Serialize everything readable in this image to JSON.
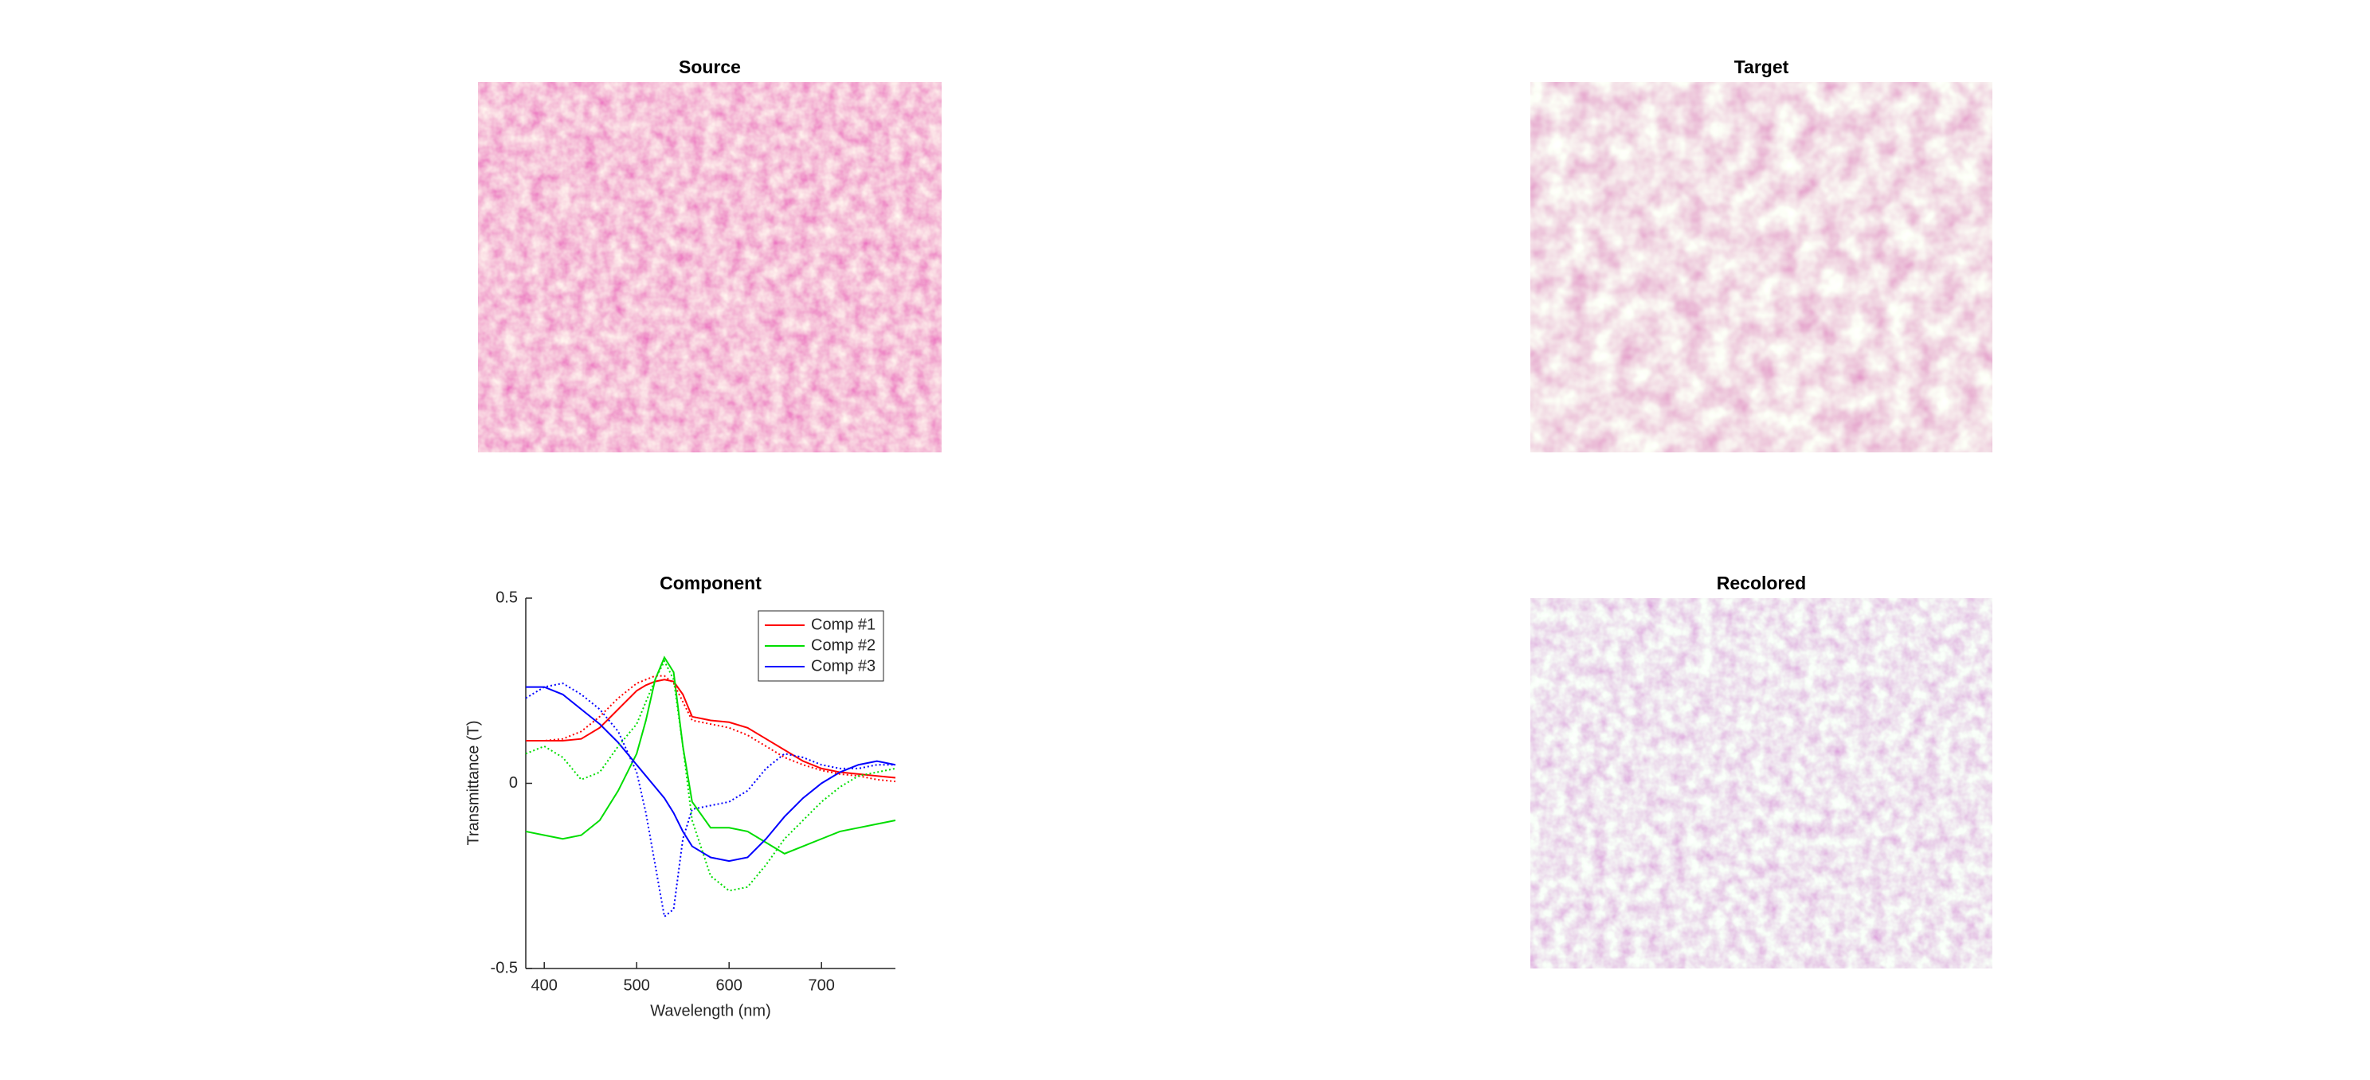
{
  "panels": [
    {
      "title": "Source"
    },
    {
      "title": "Target"
    },
    {
      "title": "Recolored"
    }
  ],
  "chart_data": {
    "type": "line",
    "title": "Component",
    "xlabel": "Wavelength (nm)",
    "ylabel": "Transmittance (T)",
    "x": [
      380,
      400,
      420,
      440,
      460,
      480,
      500,
      510,
      520,
      530,
      540,
      550,
      560,
      580,
      600,
      620,
      640,
      660,
      680,
      700,
      720,
      740,
      760,
      780
    ],
    "xlim": [
      380,
      780
    ],
    "xticks": [
      400,
      500,
      600,
      700
    ],
    "ylim": [
      -0.5,
      0.5
    ],
    "yticks": [
      -0.5,
      0,
      0.5
    ],
    "legend": "northeast",
    "series": [
      {
        "name": "Comp #1",
        "color": "#ff0000",
        "style": "solid",
        "values": [
          0.115,
          0.115,
          0.115,
          0.12,
          0.15,
          0.2,
          0.25,
          0.265,
          0.275,
          0.28,
          0.275,
          0.24,
          0.18,
          0.17,
          0.165,
          0.15,
          0.12,
          0.09,
          0.06,
          0.04,
          0.03,
          0.025,
          0.02,
          0.015
        ]
      },
      {
        "name": "Comp #2",
        "color": "#00dd00",
        "style": "solid",
        "values": [
          -0.13,
          -0.14,
          -0.15,
          -0.14,
          -0.1,
          -0.02,
          0.08,
          0.17,
          0.28,
          0.34,
          0.3,
          0.1,
          -0.05,
          -0.12,
          -0.12,
          -0.13,
          -0.16,
          -0.19,
          -0.17,
          -0.15,
          -0.13,
          -0.12,
          -0.11,
          -0.1
        ]
      },
      {
        "name": "Comp #3",
        "color": "#0000ff",
        "style": "solid",
        "values": [
          0.26,
          0.26,
          0.24,
          0.2,
          0.16,
          0.11,
          0.05,
          0.02,
          -0.01,
          -0.04,
          -0.08,
          -0.13,
          -0.17,
          -0.2,
          -0.21,
          -0.2,
          -0.15,
          -0.09,
          -0.04,
          0.0,
          0.03,
          0.05,
          0.06,
          0.05
        ]
      },
      {
        "color": "#ff0000",
        "style": "dotted",
        "values": [
          0.115,
          0.115,
          0.12,
          0.14,
          0.18,
          0.23,
          0.27,
          0.28,
          0.29,
          0.29,
          0.27,
          0.22,
          0.17,
          0.16,
          0.15,
          0.13,
          0.1,
          0.07,
          0.05,
          0.035,
          0.025,
          0.02,
          0.01,
          0.005
        ]
      },
      {
        "color": "#00dd00",
        "style": "dotted",
        "values": [
          0.08,
          0.1,
          0.07,
          0.01,
          0.03,
          0.1,
          0.16,
          0.22,
          0.28,
          0.33,
          0.28,
          0.1,
          -0.1,
          -0.25,
          -0.29,
          -0.28,
          -0.22,
          -0.15,
          -0.1,
          -0.05,
          -0.01,
          0.02,
          0.03,
          0.04
        ]
      },
      {
        "color": "#0000ff",
        "style": "dotted",
        "values": [
          0.23,
          0.26,
          0.27,
          0.24,
          0.2,
          0.14,
          0.03,
          -0.08,
          -0.22,
          -0.36,
          -0.34,
          -0.15,
          -0.07,
          -0.06,
          -0.05,
          -0.02,
          0.04,
          0.08,
          0.07,
          0.05,
          0.04,
          0.04,
          0.05,
          0.05
        ]
      }
    ]
  }
}
